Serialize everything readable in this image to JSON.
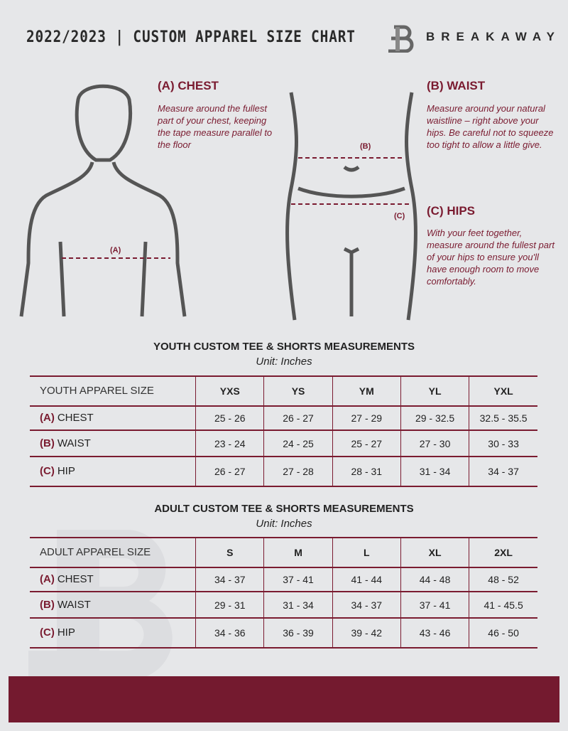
{
  "header": {
    "title": "2022/2023 | CUSTOM APPAREL SIZE CHART",
    "brand": "BREAKAWAY"
  },
  "colors": {
    "accent": "#7a1b30",
    "background": "#e6e7e9"
  },
  "guide": {
    "chest": {
      "heading": "(A) CHEST",
      "text": "Measure around the fullest part of your chest, keeping the tape measure parallel to the floor",
      "marker": "(A)"
    },
    "waist": {
      "heading": "(B) WAIST",
      "text": "Measure around your natural waistline – right above your hips. Be careful not to squeeze too tight to allow a little give.",
      "marker": "(B)"
    },
    "hips": {
      "heading": "(C) HIPS",
      "text": "With your feet together, measure around the fullest part of your hips to ensure you'll have enough room to move comfortably.",
      "marker": "(C)"
    }
  },
  "youth": {
    "title": "YOUTH CUSTOM TEE & SHORTS MEASUREMENTS",
    "unit": "Unit: Inches",
    "header": "YOUTH APPAREL SIZE",
    "sizes": [
      "YXS",
      "YS",
      "YM",
      "YL",
      "YXL"
    ],
    "rows": [
      {
        "letter": "(A)",
        "name": "CHEST",
        "values": [
          "25 - 26",
          "26 - 27",
          "27 - 29",
          "29 - 32.5",
          "32.5 - 35.5"
        ]
      },
      {
        "letter": "(B)",
        "name": "WAIST",
        "values": [
          "23 - 24",
          "24 - 25",
          "25 - 27",
          "27 - 30",
          "30 - 33"
        ]
      },
      {
        "letter": "(C)",
        "name": "HIP",
        "values": [
          "26 - 27",
          "27 - 28",
          "28 - 31",
          "31 - 34",
          "34 - 37"
        ]
      }
    ]
  },
  "adult": {
    "title": "ADULT CUSTOM TEE & SHORTS MEASUREMENTS",
    "unit": "Unit: Inches",
    "header": "ADULT APPAREL SIZE",
    "sizes": [
      "S",
      "M",
      "L",
      "XL",
      "2XL"
    ],
    "rows": [
      {
        "letter": "(A)",
        "name": "CHEST",
        "values": [
          "34 - 37",
          "37 - 41",
          "41 - 44",
          "44 - 48",
          "48 - 52"
        ]
      },
      {
        "letter": "(B)",
        "name": "WAIST",
        "values": [
          "29 - 31",
          "31 - 34",
          "34 - 37",
          "37 - 41",
          "41 - 45.5"
        ]
      },
      {
        "letter": "(C)",
        "name": "HIP",
        "values": [
          "34 - 36",
          "36 - 39",
          "39 - 42",
          "43 - 46",
          "46 - 50"
        ]
      }
    ]
  }
}
